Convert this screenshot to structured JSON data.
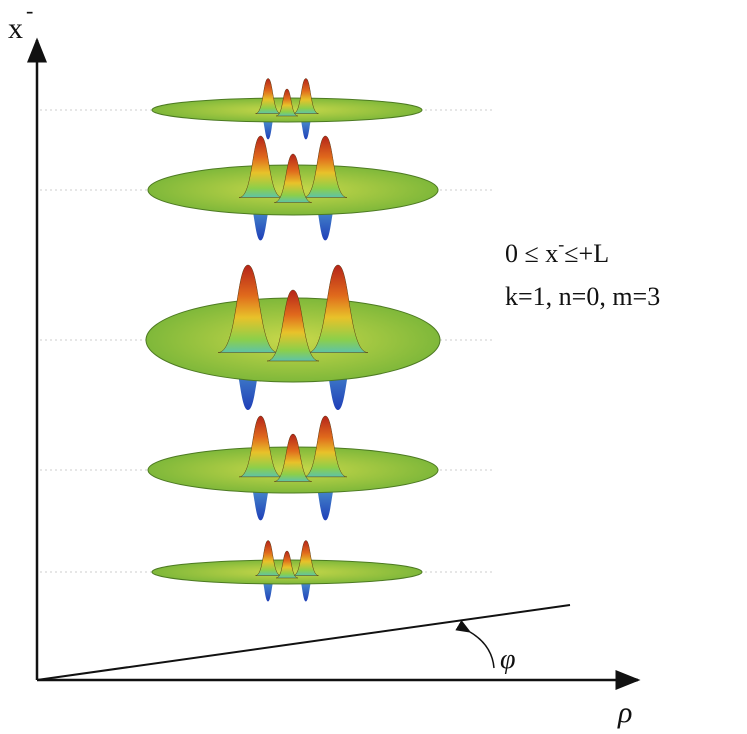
{
  "labels": {
    "y_axis": "x",
    "y_axis_superscript": "-",
    "x_axis": "ρ",
    "angle": "φ",
    "range": {
      "before": "0 ≤ x",
      "superscript": "-",
      "after": "≤+L"
    },
    "params": "k=1, n=0, m=3"
  }
}
